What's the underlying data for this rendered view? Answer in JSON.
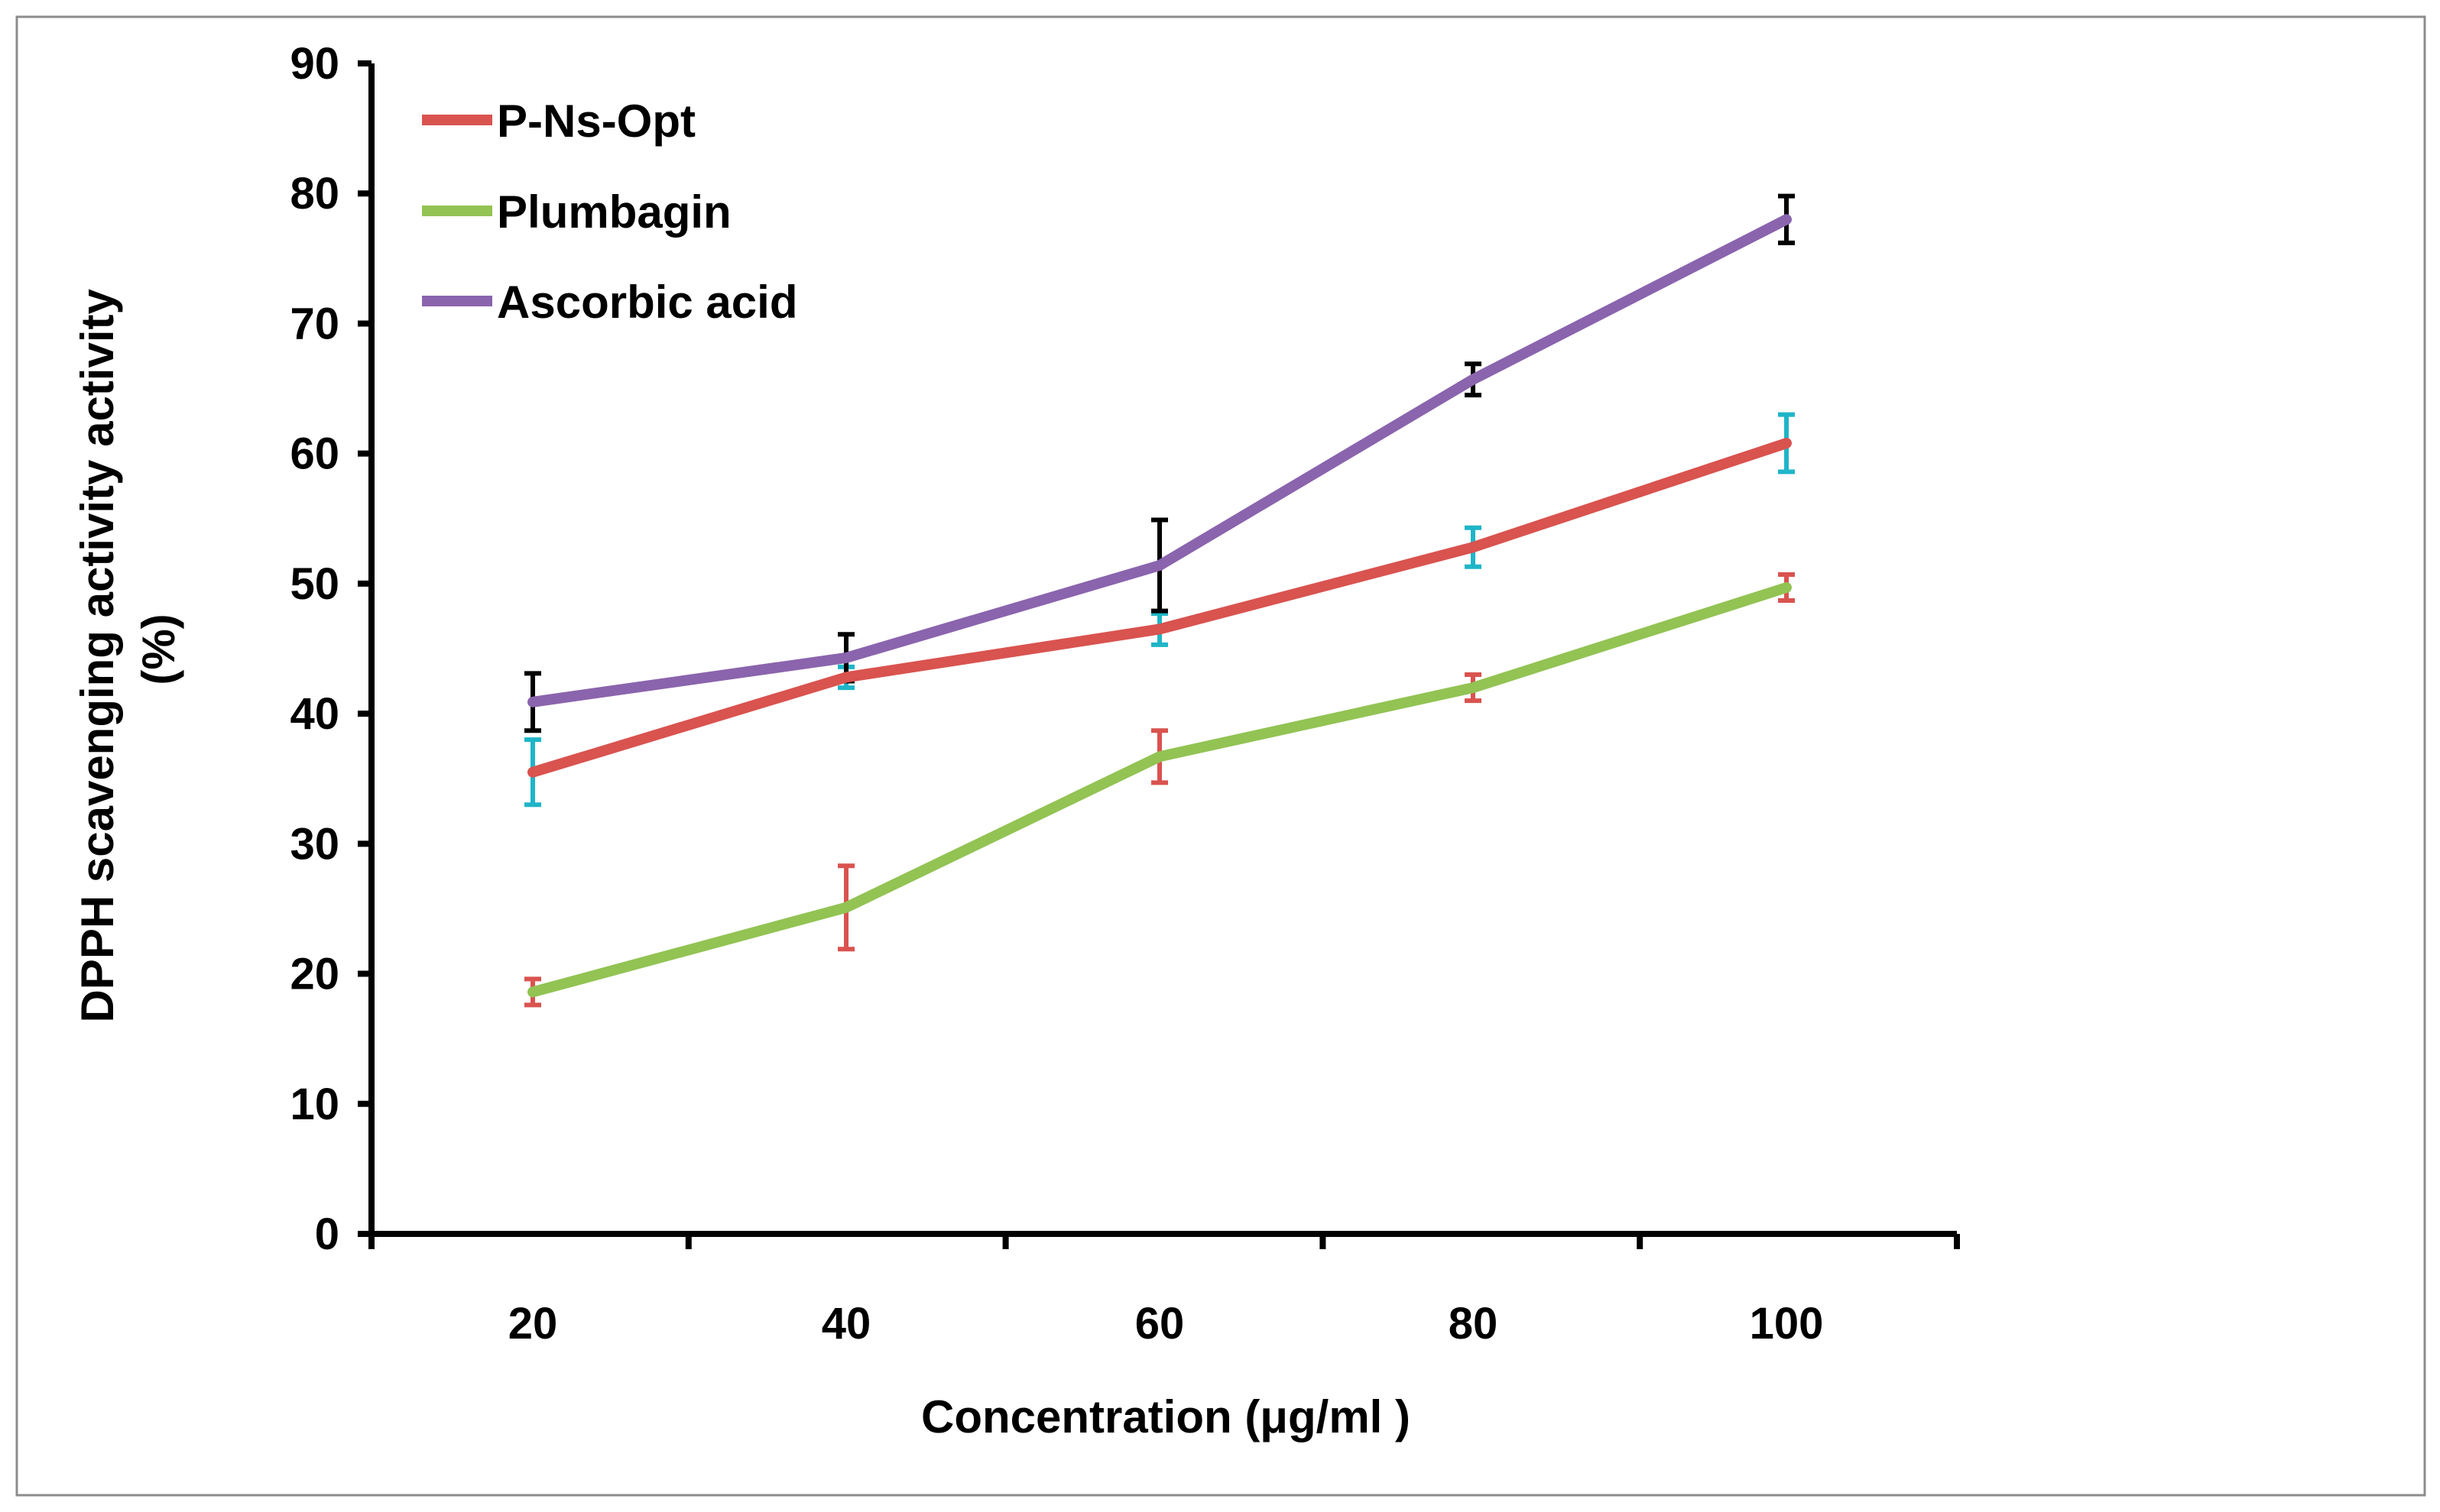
{
  "chart_data": {
    "type": "line",
    "title": "",
    "xlabel": "Concentration (μg/ml )",
    "ylabel_lines": [
      "DPPH scavenging activity activity",
      "(%)"
    ],
    "x": [
      20,
      40,
      60,
      80,
      100
    ],
    "x_tick_labels": [
      "20",
      "40",
      "60",
      "80",
      "100"
    ],
    "y_ticks": [
      "0",
      "10",
      "20",
      "30",
      "40",
      "50",
      "60",
      "70",
      "80",
      "90"
    ],
    "ylim": [
      0,
      90
    ],
    "grid": false,
    "legend_position": "top-left",
    "series": [
      {
        "name": "P-Ns-Opt",
        "color": "#d9534f",
        "error_bar_color": "#1fb5c8",
        "values": [
          35.5,
          42.8,
          46.5,
          52.8,
          60.8
        ],
        "errors": [
          2.5,
          0.8,
          1.2,
          1.5,
          2.2
        ]
      },
      {
        "name": "Plumbagin",
        "color": "#92c353",
        "error_bar_color": "#d9534f",
        "values": [
          18.6,
          25.1,
          36.7,
          42.0,
          49.7
        ],
        "errors": [
          1.0,
          3.2,
          2.0,
          1.0,
          1.0
        ]
      },
      {
        "name": "Ascorbic acid",
        "color": "#8a64ad",
        "error_bar_color": "#000000",
        "values": [
          40.9,
          44.3,
          51.4,
          65.7,
          78.0
        ],
        "errors": [
          2.2,
          1.8,
          3.5,
          1.2,
          1.8
        ]
      }
    ]
  }
}
